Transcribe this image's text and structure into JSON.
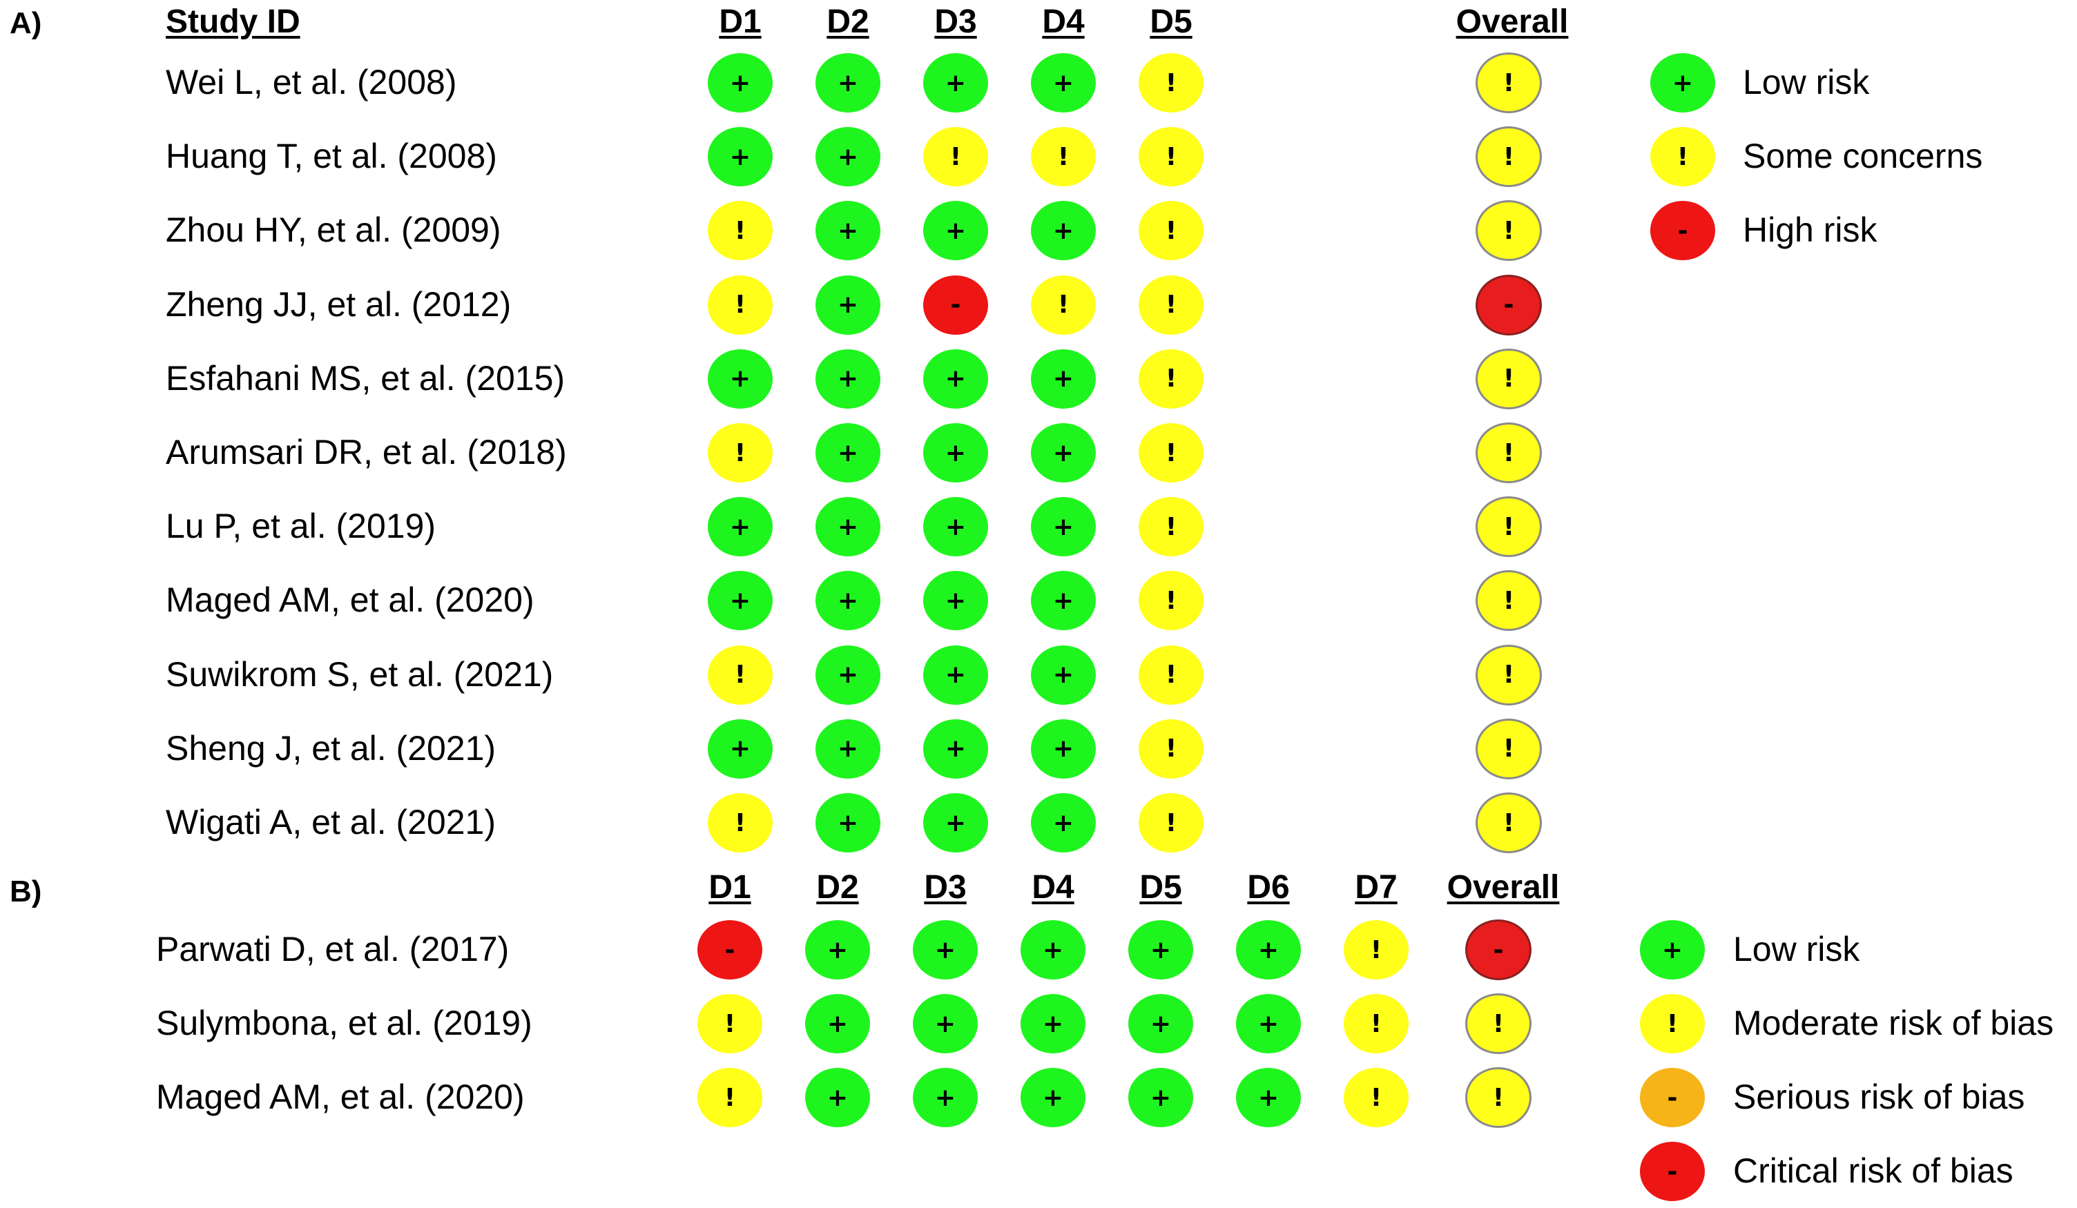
{
  "panelA": {
    "label": "A)",
    "study_header": "Study ID",
    "domains": [
      "D1",
      "D2",
      "D3",
      "D4",
      "D5"
    ],
    "overall_header": "Overall",
    "studies": [
      {
        "name": "Wei L, et al. (2008)",
        "d": [
          "low",
          "low",
          "low",
          "low",
          "some"
        ],
        "overall": "some"
      },
      {
        "name": "Huang T, et al. (2008)",
        "d": [
          "low",
          "low",
          "some",
          "some",
          "some"
        ],
        "overall": "some"
      },
      {
        "name": "Zhou HY, et al. (2009)",
        "d": [
          "some",
          "low",
          "low",
          "low",
          "some"
        ],
        "overall": "some"
      },
      {
        "name": "Zheng JJ, et al. (2012)",
        "d": [
          "some",
          "low",
          "high",
          "some",
          "some"
        ],
        "overall": "high"
      },
      {
        "name": "Esfahani MS, et al. (2015)",
        "d": [
          "low",
          "low",
          "low",
          "low",
          "some"
        ],
        "overall": "some"
      },
      {
        "name": "Arumsari DR, et al. (2018)",
        "d": [
          "some",
          "low",
          "low",
          "low",
          "some"
        ],
        "overall": "some"
      },
      {
        "name": "Lu P, et al. (2019)",
        "d": [
          "low",
          "low",
          "low",
          "low",
          "some"
        ],
        "overall": "some"
      },
      {
        "name": "Maged AM, et al. (2020)",
        "d": [
          "low",
          "low",
          "low",
          "low",
          "some"
        ],
        "overall": "some"
      },
      {
        "name": "Suwikrom S, et al. (2021)",
        "d": [
          "some",
          "low",
          "low",
          "low",
          "some"
        ],
        "overall": "some"
      },
      {
        "name": "Sheng J, et al. (2021)",
        "d": [
          "low",
          "low",
          "low",
          "low",
          "some"
        ],
        "overall": "some"
      },
      {
        "name": "Wigati A, et al. (2021)",
        "d": [
          "some",
          "low",
          "low",
          "low",
          "some"
        ],
        "overall": "some"
      }
    ],
    "legend": [
      {
        "key": "low",
        "label": "Low risk"
      },
      {
        "key": "some",
        "label": "Some concerns"
      },
      {
        "key": "high",
        "label": "High risk"
      }
    ]
  },
  "panelB": {
    "label": "B)",
    "domains": [
      "D1",
      "D2",
      "D3",
      "D4",
      "D5",
      "D6",
      "D7"
    ],
    "overall_header": "Overall",
    "studies": [
      {
        "name": "Parwati D, et al. (2017)",
        "d": [
          "high",
          "low",
          "low",
          "low",
          "low",
          "low",
          "some"
        ],
        "overall": "high"
      },
      {
        "name": "Sulymbona, et al. (2019)",
        "d": [
          "some",
          "low",
          "low",
          "low",
          "low",
          "low",
          "some"
        ],
        "overall": "some"
      },
      {
        "name": "Maged AM, et al. (2020)",
        "d": [
          "some",
          "low",
          "low",
          "low",
          "low",
          "low",
          "some"
        ],
        "overall": "some"
      }
    ],
    "legend": [
      {
        "key": "low",
        "label": "Low risk"
      },
      {
        "key": "some",
        "label": "Moderate risk of bias"
      },
      {
        "key": "serious",
        "label": "Serious risk of bias"
      },
      {
        "key": "high",
        "label": "Critical risk of bias"
      }
    ]
  },
  "symbols": {
    "low": "+",
    "some": "!",
    "high": "-",
    "serious": "-"
  },
  "colors": {
    "low": "#1ef51e",
    "some": "#ffff1a",
    "high": "#ee1515",
    "serious": "#f7b418"
  }
}
